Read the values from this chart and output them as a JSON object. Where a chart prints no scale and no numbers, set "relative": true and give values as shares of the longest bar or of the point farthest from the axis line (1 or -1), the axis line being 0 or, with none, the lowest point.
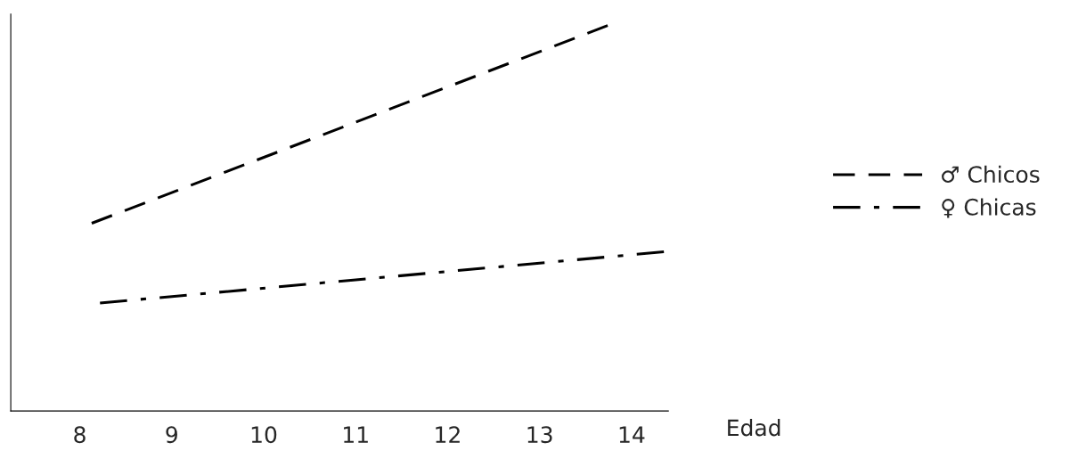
{
  "chart_data": {
    "type": "line",
    "relative": true,
    "xlabel": "Edad",
    "xlim": [
      7.25,
      14.4
    ],
    "xticks": [
      8,
      9,
      10,
      11,
      12,
      13,
      14
    ],
    "series": [
      {
        "name": "♂ Chicos",
        "color": "#000000",
        "x": [
          8.13,
          13.74
        ],
        "values": [
          0.487,
          1
        ],
        "line_style": "dashed"
      },
      {
        "name": "♀ Chicas",
        "color": "#000000",
        "x": [
          8.22,
          14.4
        ],
        "values": [
          0.28,
          0.414
        ],
        "line_style": "dashdot"
      }
    ],
    "legend": "right",
    "grid": false
  }
}
